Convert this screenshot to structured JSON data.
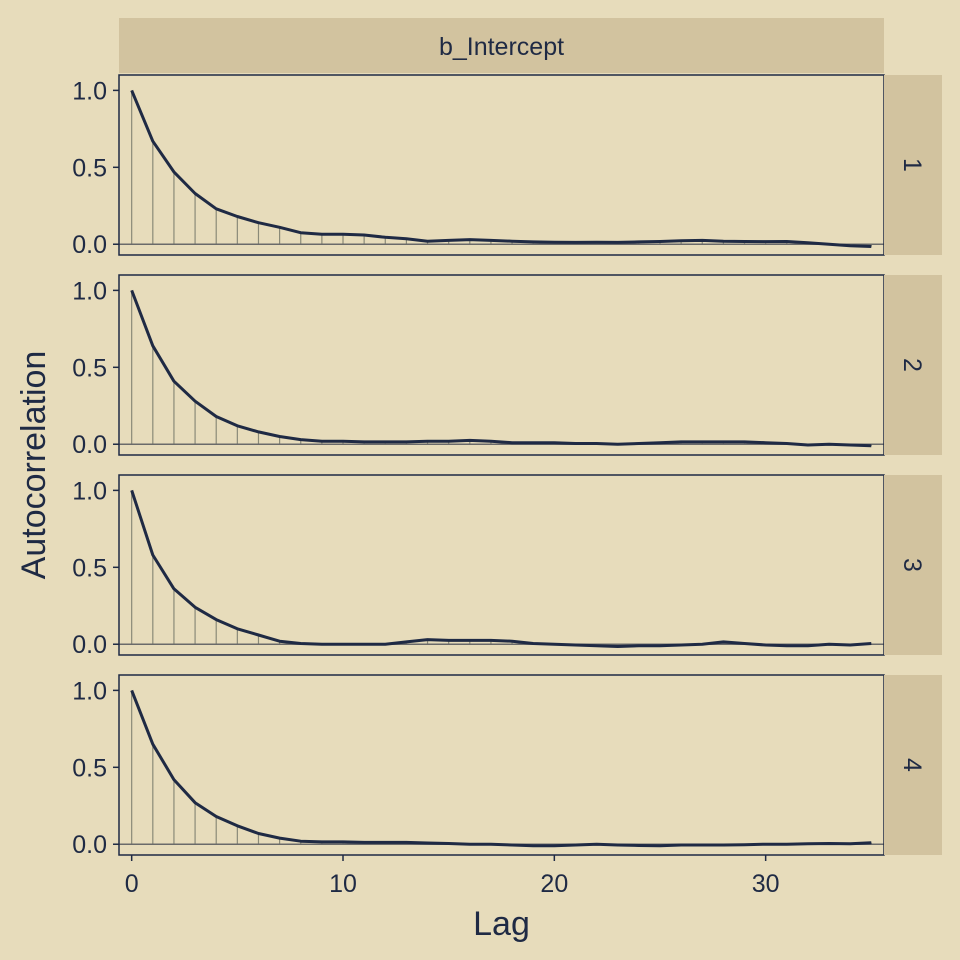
{
  "chart_data": {
    "type": "line",
    "xlabel": "Lag",
    "ylabel": "Autocorrelation",
    "column_strip": "b_Intercept",
    "xlim": [
      -0.6,
      35.6
    ],
    "ylim": [
      -0.07,
      1.1
    ],
    "x_ticks": [
      0,
      10,
      20,
      30
    ],
    "y_ticks": [
      0.0,
      0.5,
      1.0
    ],
    "y_tick_labels": [
      "0.0",
      "0.5",
      "1.0"
    ],
    "grid": false,
    "colors": {
      "background": "#e7dcbb",
      "strip": "#d2c39f",
      "line": "#1f2a44",
      "stem": "#8a8a78",
      "zero_line": "#6a6a6a",
      "panel_border": "#1f2a44"
    },
    "x": [
      0,
      1,
      2,
      3,
      4,
      5,
      6,
      7,
      8,
      9,
      10,
      11,
      12,
      13,
      14,
      15,
      16,
      17,
      18,
      19,
      20,
      21,
      22,
      23,
      24,
      25,
      26,
      27,
      28,
      29,
      30,
      31,
      32,
      33,
      34,
      35
    ],
    "panels": [
      {
        "label": "1",
        "values": [
          1.0,
          0.67,
          0.47,
          0.33,
          0.23,
          0.18,
          0.14,
          0.11,
          0.075,
          0.065,
          0.065,
          0.06,
          0.045,
          0.035,
          0.02,
          0.025,
          0.03,
          0.025,
          0.02,
          0.015,
          0.013,
          0.012,
          0.013,
          0.012,
          0.015,
          0.018,
          0.022,
          0.025,
          0.02,
          0.018,
          0.017,
          0.018,
          0.01,
          0.0,
          -0.01,
          -0.015
        ]
      },
      {
        "label": "2",
        "values": [
          1.0,
          0.64,
          0.41,
          0.28,
          0.18,
          0.12,
          0.08,
          0.05,
          0.03,
          0.02,
          0.02,
          0.015,
          0.015,
          0.015,
          0.02,
          0.02,
          0.025,
          0.02,
          0.01,
          0.01,
          0.01,
          0.005,
          0.005,
          0.0,
          0.005,
          0.01,
          0.015,
          0.015,
          0.015,
          0.015,
          0.01,
          0.005,
          -0.005,
          0.0,
          -0.005,
          -0.01
        ]
      },
      {
        "label": "3",
        "values": [
          1.0,
          0.58,
          0.36,
          0.24,
          0.16,
          0.1,
          0.06,
          0.02,
          0.005,
          0.0,
          0.0,
          0.0,
          0.0,
          0.015,
          0.03,
          0.025,
          0.025,
          0.025,
          0.02,
          0.005,
          0.0,
          -0.005,
          -0.01,
          -0.015,
          -0.01,
          -0.01,
          -0.005,
          0.0,
          0.015,
          0.005,
          -0.005,
          -0.01,
          -0.01,
          0.0,
          -0.005,
          0.005
        ]
      },
      {
        "label": "4",
        "values": [
          1.0,
          0.65,
          0.42,
          0.27,
          0.18,
          0.12,
          0.07,
          0.04,
          0.02,
          0.015,
          0.015,
          0.012,
          0.012,
          0.012,
          0.008,
          0.005,
          0.0,
          0.0,
          -0.005,
          -0.01,
          -0.01,
          -0.005,
          0.0,
          -0.005,
          -0.008,
          -0.01,
          -0.005,
          -0.005,
          -0.005,
          -0.003,
          0.0,
          0.0,
          0.003,
          0.005,
          0.003,
          0.01
        ]
      }
    ]
  }
}
